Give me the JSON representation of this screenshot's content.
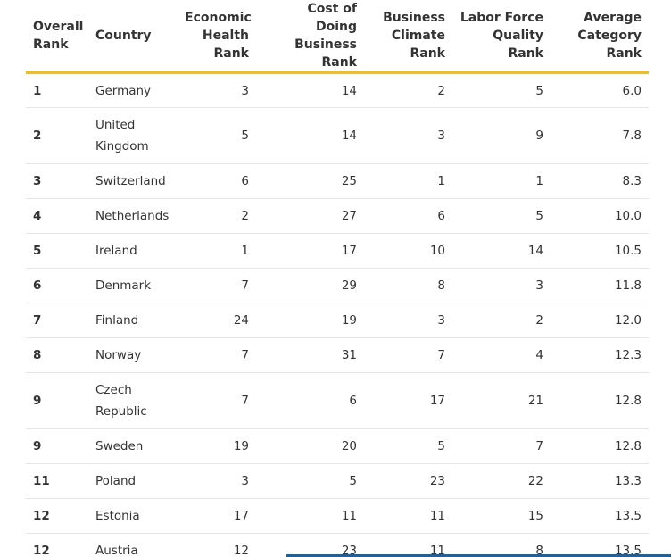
{
  "table": {
    "headers": {
      "overall_rank": "Overall Rank",
      "country": "Country",
      "economic_health_rank": "Economic Health Rank",
      "cost_of_doing_business_rank": "Cost of Doing Business Rank",
      "business_climate_rank": "Business Climate Rank",
      "labor_force_quality_rank": "Labor Force Quality Rank",
      "average_category_rank": "Average Category Rank"
    },
    "rows": [
      {
        "overall_rank": "1",
        "country": "Germany",
        "economic_health_rank": "3",
        "cost_of_doing_business_rank": "14",
        "business_climate_rank": "2",
        "labor_force_quality_rank": "5",
        "average_category_rank": "6.0"
      },
      {
        "overall_rank": "2",
        "country": "United Kingdom",
        "economic_health_rank": "5",
        "cost_of_doing_business_rank": "14",
        "business_climate_rank": "3",
        "labor_force_quality_rank": "9",
        "average_category_rank": "7.8"
      },
      {
        "overall_rank": "3",
        "country": "Switzerland",
        "economic_health_rank": "6",
        "cost_of_doing_business_rank": "25",
        "business_climate_rank": "1",
        "labor_force_quality_rank": "1",
        "average_category_rank": "8.3"
      },
      {
        "overall_rank": "4",
        "country": "Netherlands",
        "economic_health_rank": "2",
        "cost_of_doing_business_rank": "27",
        "business_climate_rank": "6",
        "labor_force_quality_rank": "5",
        "average_category_rank": "10.0"
      },
      {
        "overall_rank": "5",
        "country": "Ireland",
        "economic_health_rank": "1",
        "cost_of_doing_business_rank": "17",
        "business_climate_rank": "10",
        "labor_force_quality_rank": "14",
        "average_category_rank": "10.5"
      },
      {
        "overall_rank": "6",
        "country": "Denmark",
        "economic_health_rank": "7",
        "cost_of_doing_business_rank": "29",
        "business_climate_rank": "8",
        "labor_force_quality_rank": "3",
        "average_category_rank": "11.8"
      },
      {
        "overall_rank": "7",
        "country": "Finland",
        "economic_health_rank": "24",
        "cost_of_doing_business_rank": "19",
        "business_climate_rank": "3",
        "labor_force_quality_rank": "2",
        "average_category_rank": "12.0"
      },
      {
        "overall_rank": "8",
        "country": "Norway",
        "economic_health_rank": "7",
        "cost_of_doing_business_rank": "31",
        "business_climate_rank": "7",
        "labor_force_quality_rank": "4",
        "average_category_rank": "12.3"
      },
      {
        "overall_rank": "9",
        "country": "Czech Republic",
        "economic_health_rank": "7",
        "cost_of_doing_business_rank": "6",
        "business_climate_rank": "17",
        "labor_force_quality_rank": "21",
        "average_category_rank": "12.8"
      },
      {
        "overall_rank": "9",
        "country": "Sweden",
        "economic_health_rank": "19",
        "cost_of_doing_business_rank": "20",
        "business_climate_rank": "5",
        "labor_force_quality_rank": "7",
        "average_category_rank": "12.8"
      },
      {
        "overall_rank": "11",
        "country": "Poland",
        "economic_health_rank": "3",
        "cost_of_doing_business_rank": "5",
        "business_climate_rank": "23",
        "labor_force_quality_rank": "22",
        "average_category_rank": "13.3"
      },
      {
        "overall_rank": "12",
        "country": "Estonia",
        "economic_health_rank": "17",
        "cost_of_doing_business_rank": "11",
        "business_climate_rank": "11",
        "labor_force_quality_rank": "15",
        "average_category_rank": "13.5"
      },
      {
        "overall_rank": "12",
        "country": "Austria",
        "economic_health_rank": "12",
        "cost_of_doing_business_rank": "23",
        "business_climate_rank": "11",
        "labor_force_quality_rank": "8",
        "average_category_rank": "13.5"
      }
    ]
  },
  "colors": {
    "header_rule": "#f2bf1a",
    "row_divider": "#e6e6e6",
    "text": "#333333",
    "bottom_accent": "#1f5f9a"
  }
}
